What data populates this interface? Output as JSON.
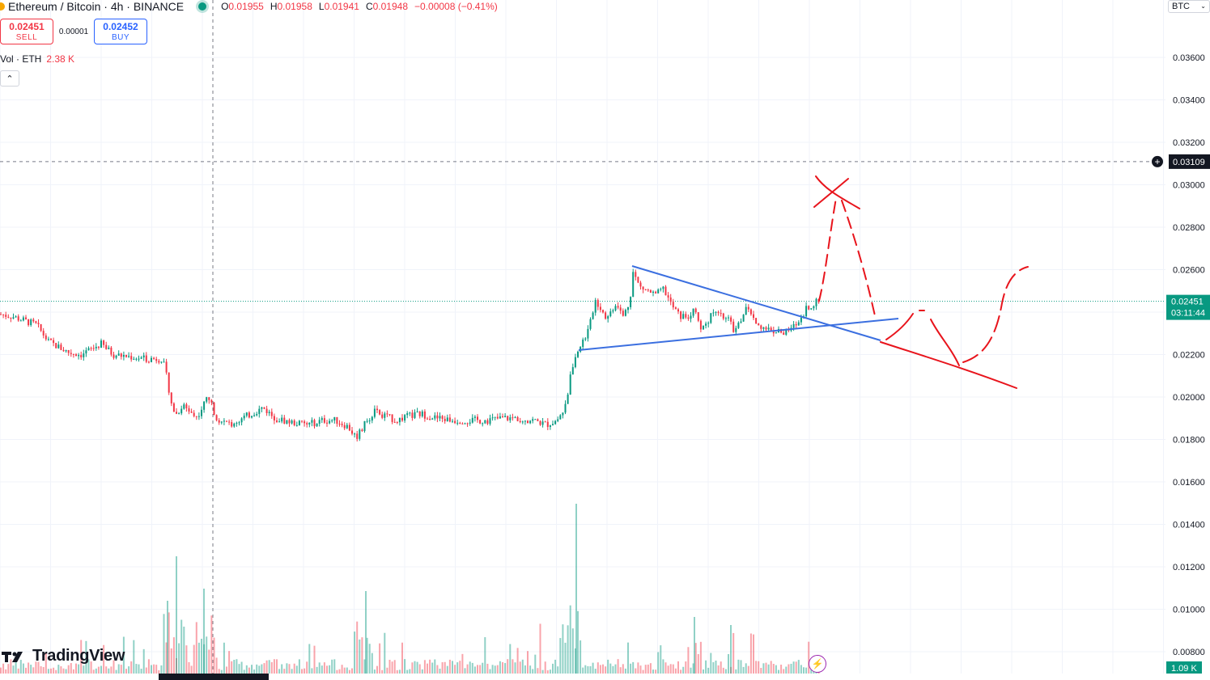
{
  "header": {
    "title": "Ethereum / Bitcoin · 4h · BINANCE",
    "ohlc": {
      "o_label": "O",
      "o": "0.01955",
      "h_label": "H",
      "h": "0.01958",
      "l_label": "L",
      "l": "0.01941",
      "c_label": "C",
      "c": "0.01948",
      "change": "−0.00008 (−0.41%)"
    }
  },
  "trade": {
    "sell_price": "0.02451",
    "sell_label": "SELL",
    "spread": "0.00001",
    "buy_price": "0.02452",
    "buy_label": "BUY"
  },
  "volume_legend": {
    "label": "Vol · ETH",
    "value": "2.38 K"
  },
  "currency": "BTC",
  "brand": "TradingView",
  "colors": {
    "up": "#089981",
    "down": "#f23645",
    "trendline": "#3b6fe0",
    "drawing": "#e8141c",
    "grid": "#f0f3fa"
  },
  "chart_data": {
    "type": "candlestick",
    "symbol": "ETHBTC",
    "timeframe": "4h",
    "ylim": [
      0.0076,
      0.0382
    ],
    "yticks": [
      "0.03600",
      "0.03400",
      "0.03200",
      "0.03000",
      "0.02800",
      "0.02600",
      "0.02400",
      "0.02200",
      "0.02000",
      "0.01800",
      "0.01600",
      "0.01400",
      "0.01200",
      "0.01000",
      "0.00800"
    ],
    "last_price": "0.02451",
    "countdown": "03:11:44",
    "crosshair_price": "0.03109",
    "volume_last": "1.09 K",
    "close_path": [
      [
        0,
        0.0239
      ],
      [
        15,
        0.0238
      ],
      [
        30,
        0.0236
      ],
      [
        45,
        0.0234
      ],
      [
        60,
        0.0226
      ],
      [
        70,
        0.0224
      ],
      [
        85,
        0.0221
      ],
      [
        100,
        0.022
      ],
      [
        115,
        0.0223
      ],
      [
        125,
        0.0225
      ],
      [
        140,
        0.022
      ],
      [
        160,
        0.0219
      ],
      [
        180,
        0.0218
      ],
      [
        200,
        0.0218
      ],
      [
        205,
        0.0212
      ],
      [
        210,
        0.0198
      ],
      [
        218,
        0.0192
      ],
      [
        226,
        0.0196
      ],
      [
        234,
        0.0194
      ],
      [
        242,
        0.019
      ],
      [
        250,
        0.0195
      ],
      [
        257,
        0.0201
      ],
      [
        263,
        0.0194
      ],
      [
        270,
        0.0189
      ],
      [
        285,
        0.0187
      ],
      [
        300,
        0.019
      ],
      [
        315,
        0.0193
      ],
      [
        325,
        0.0195
      ],
      [
        340,
        0.019
      ],
      [
        360,
        0.0188
      ],
      [
        380,
        0.0187
      ],
      [
        400,
        0.0189
      ],
      [
        415,
        0.0189
      ],
      [
        430,
        0.0186
      ],
      [
        440,
        0.0181
      ],
      [
        446,
        0.0184
      ],
      [
        452,
        0.0188
      ],
      [
        462,
        0.0193
      ],
      [
        475,
        0.0191
      ],
      [
        490,
        0.0189
      ],
      [
        505,
        0.0191
      ],
      [
        520,
        0.0192
      ],
      [
        540,
        0.019
      ],
      [
        560,
        0.0189
      ],
      [
        580,
        0.0189
      ],
      [
        600,
        0.0189
      ],
      [
        620,
        0.019
      ],
      [
        640,
        0.019
      ],
      [
        660,
        0.0189
      ],
      [
        675,
        0.0187
      ],
      [
        688,
        0.0189
      ],
      [
        695,
        0.0193
      ],
      [
        700,
        0.0199
      ],
      [
        705,
        0.021
      ],
      [
        710,
        0.0218
      ],
      [
        716,
        0.0223
      ],
      [
        722,
        0.0228
      ],
      [
        728,
        0.0232
      ],
      [
        735,
        0.0246
      ],
      [
        742,
        0.0242
      ],
      [
        750,
        0.0237
      ],
      [
        760,
        0.0244
      ],
      [
        770,
        0.0238
      ],
      [
        778,
        0.0245
      ],
      [
        782,
        0.0259
      ],
      [
        790,
        0.0252
      ],
      [
        800,
        0.025
      ],
      [
        810,
        0.0248
      ],
      [
        820,
        0.0251
      ],
      [
        830,
        0.0243
      ],
      [
        840,
        0.0238
      ],
      [
        850,
        0.0238
      ],
      [
        858,
        0.0242
      ],
      [
        865,
        0.0231
      ],
      [
        872,
        0.0235
      ],
      [
        880,
        0.0239
      ],
      [
        890,
        0.0238
      ],
      [
        900,
        0.0236
      ],
      [
        908,
        0.0231
      ],
      [
        916,
        0.0237
      ],
      [
        924,
        0.0243
      ],
      [
        930,
        0.0236
      ],
      [
        940,
        0.0233
      ],
      [
        950,
        0.0232
      ],
      [
        960,
        0.0231
      ],
      [
        970,
        0.023
      ],
      [
        980,
        0.0233
      ],
      [
        988,
        0.0236
      ],
      [
        996,
        0.0242
      ],
      [
        1005,
        0.0244
      ],
      [
        1012,
        0.0245
      ]
    ]
  }
}
